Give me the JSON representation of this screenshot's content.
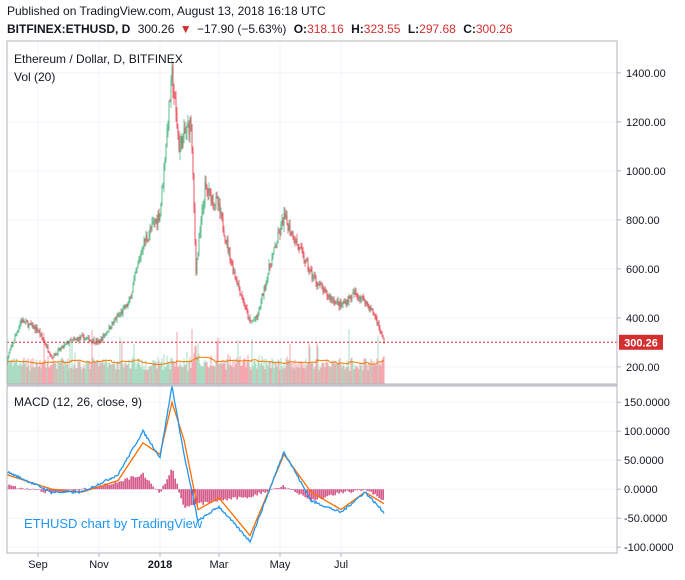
{
  "header": {
    "published": "Published on TradingView.com, August 13, 2018 16:18 UTC",
    "symbol": "BITFINEX:ETHUSD, D",
    "last": "300.26",
    "down_arrow": "▼",
    "change": "−17.90 (−5.63%)",
    "o_label": "O:",
    "o_value": "318.16",
    "h_label": "H:",
    "h_value": "323.55",
    "l_label": "L:",
    "l_value": "297.68",
    "c_label": "C:",
    "c_value": "300.26"
  },
  "legend": {
    "main": "Ethereum / Dollar, D, BITFINEX",
    "vol": "Vol (20)",
    "macd": "MACD (12, 26, close, 9)"
  },
  "watermark": "ETHUSD chart by TradingView",
  "price_badge": "300.26",
  "colors": {
    "up": "#53b987",
    "down": "#eb4d5c",
    "vol_up": "#a9dcc3",
    "vol_down": "#f5a6ae",
    "vol_ma": "#f57c00",
    "macd_line": "#2196f3",
    "signal_line": "#ff6d00",
    "hist": "#c2185b",
    "price_line": "#d32f2f",
    "grid": "#f0f3fa",
    "text": "#131722"
  },
  "chart_data": [
    {
      "type": "candlestick",
      "title": "Ethereum / Dollar, D, BITFINEX",
      "x_ticks": [
        "Sep",
        "Nov",
        "2018",
        "Mar",
        "May",
        "Jul"
      ],
      "y_ticks": [
        "200.00",
        "400.00",
        "600.00",
        "800.00",
        "1000.00",
        "1200.00",
        "1400.00"
      ],
      "ylim": [
        130,
        1530
      ],
      "series": [
        {
          "name": "close",
          "x": [
            "2017-08-01",
            "2017-08-15",
            "2017-09-01",
            "2017-09-15",
            "2017-10-01",
            "2017-10-15",
            "2017-11-01",
            "2017-11-15",
            "2017-12-01",
            "2017-12-15",
            "2018-01-01",
            "2018-01-13",
            "2018-01-20",
            "2018-02-01",
            "2018-02-06",
            "2018-02-15",
            "2018-02-28",
            "2018-03-15",
            "2018-04-01",
            "2018-04-08",
            "2018-04-20",
            "2018-05-05",
            "2018-05-15",
            "2018-06-01",
            "2018-06-15",
            "2018-07-01",
            "2018-07-15",
            "2018-07-25",
            "2018-08-05",
            "2018-08-13"
          ],
          "values": [
            230,
            390,
            350,
            240,
            300,
            320,
            300,
            380,
            460,
            700,
            830,
            1390,
            1100,
            1200,
            600,
            930,
            860,
            600,
            380,
            400,
            600,
            810,
            730,
            580,
            500,
            450,
            500,
            470,
            400,
            300
          ]
        }
      ]
    },
    {
      "type": "bar",
      "title": "Vol (20)",
      "note": "volume histogram with 20-period moving average"
    },
    {
      "type": "line",
      "title": "MACD (12, 26, close, 9)",
      "y_ticks": [
        "-100.0000",
        "-50.0000",
        "0.0000",
        "50.0000",
        "100.0000",
        "150.0000"
      ],
      "ylim": [
        -110,
        178
      ],
      "series": [
        {
          "name": "MACD",
          "x": [
            "2017-08-01",
            "2017-09-15",
            "2017-10-15",
            "2017-11-20",
            "2017-12-15",
            "2018-01-01",
            "2018-01-13",
            "2018-01-25",
            "2018-02-08",
            "2018-03-01",
            "2018-04-01",
            "2018-05-05",
            "2018-06-01",
            "2018-07-01",
            "2018-07-25",
            "2018-08-13"
          ],
          "values": [
            30,
            -5,
            -5,
            25,
            100,
            55,
            178,
            60,
            -55,
            -30,
            -90,
            65,
            -20,
            -40,
            -5,
            -40
          ]
        },
        {
          "name": "signal",
          "x": [
            "2017-08-01",
            "2017-09-15",
            "2017-10-15",
            "2017-11-20",
            "2017-12-15",
            "2018-01-01",
            "2018-01-13",
            "2018-01-25",
            "2018-02-08",
            "2018-03-01",
            "2018-04-01",
            "2018-05-05",
            "2018-06-01",
            "2018-07-01",
            "2018-07-25",
            "2018-08-13"
          ],
          "values": [
            25,
            0,
            -5,
            15,
            80,
            60,
            150,
            85,
            -35,
            -15,
            -80,
            60,
            -5,
            -35,
            -5,
            -25
          ]
        }
      ]
    }
  ]
}
